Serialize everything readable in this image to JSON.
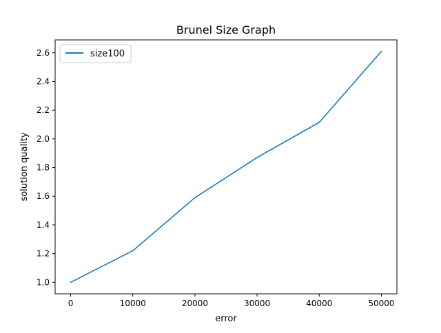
{
  "chart_data": {
    "type": "line",
    "title": "Brunel Size Graph",
    "xlabel": "error",
    "ylabel": "solution quality",
    "xlim": [
      -2500,
      52500
    ],
    "ylim": [
      0.92,
      2.69
    ],
    "xticks": [
      0,
      10000,
      20000,
      30000,
      40000,
      50000
    ],
    "xtick_labels": [
      "0",
      "10000",
      "20000",
      "30000",
      "40000",
      "50000"
    ],
    "yticks": [
      1.0,
      1.2,
      1.4,
      1.6,
      1.8,
      2.0,
      2.2,
      2.4,
      2.6
    ],
    "ytick_labels": [
      "1.0",
      "1.2",
      "1.4",
      "1.6",
      "1.8",
      "2.0",
      "2.2",
      "2.4",
      "2.6"
    ],
    "grid": false,
    "legend_position": "upper left",
    "series": [
      {
        "name": "size100",
        "color": "#1f77b4",
        "x": [
          0,
          10000,
          20000,
          30000,
          40000,
          50000
        ],
        "y": [
          1.0,
          1.22,
          1.59,
          1.87,
          2.115,
          2.61
        ]
      }
    ]
  }
}
